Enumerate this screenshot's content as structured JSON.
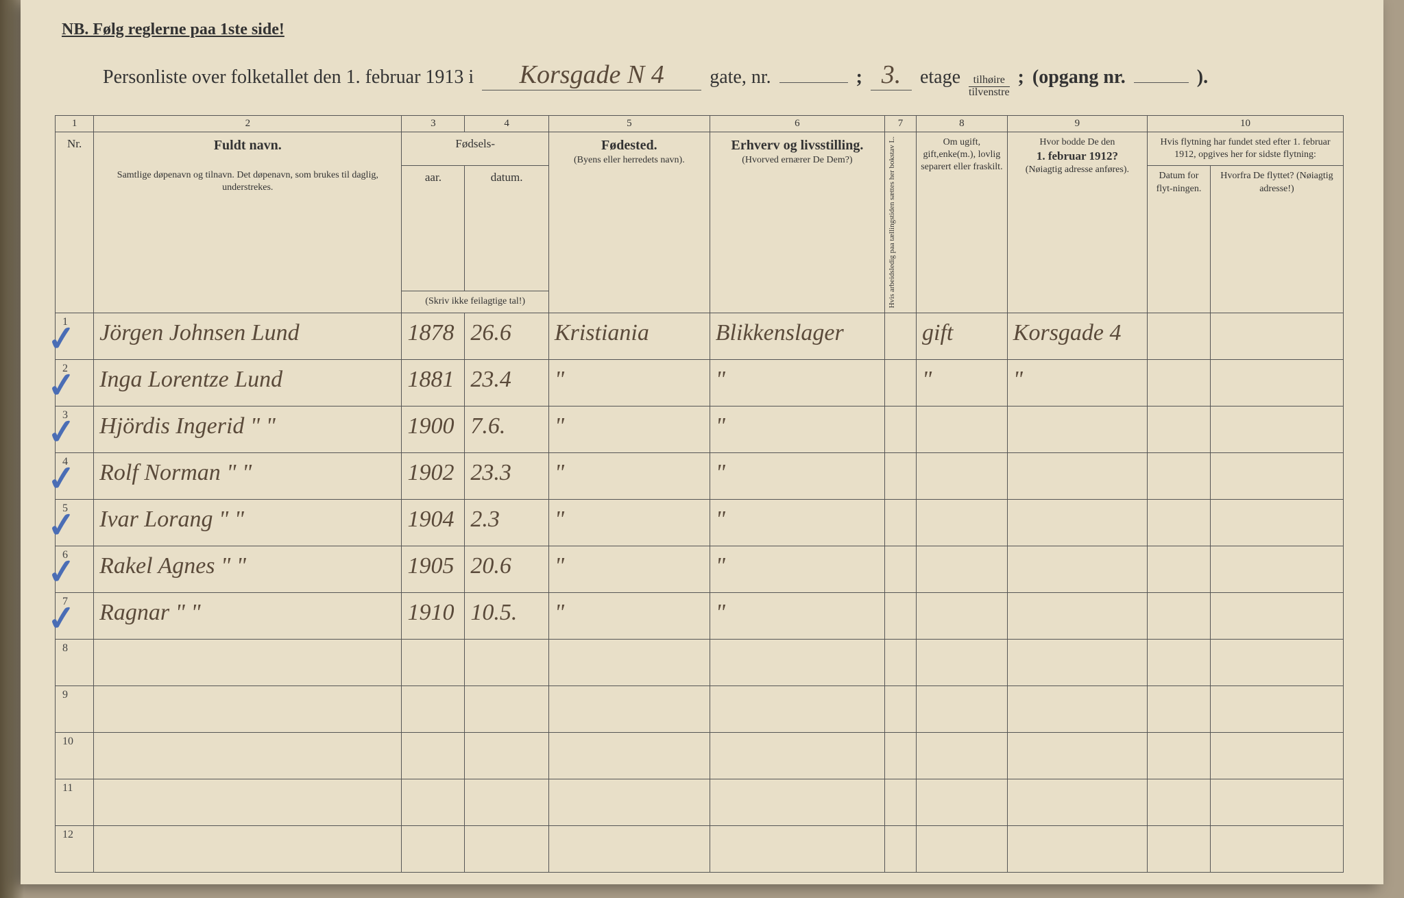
{
  "nb_text": "NB.  Følg reglerne paa 1ste side!",
  "header": {
    "prefix": "Personliste over folketallet den 1. februar 1913 i",
    "street_hw": "Korsgade N 4",
    "gate_label": "gate, nr.",
    "gate_val": "",
    "semicolon": ";",
    "etage_val": "3.",
    "etage_label": "etage",
    "frac_top": "tilhøire",
    "frac_bot": "tilvenstre",
    "semi2": ";",
    "opgang": "(opgang nr.",
    "opgang_val": "",
    "close": ")."
  },
  "colnums": [
    "1",
    "2",
    "3",
    "4",
    "5",
    "6",
    "7",
    "8",
    "9",
    "10"
  ],
  "headers": {
    "c2_bold": "Fuldt navn.",
    "c2_small": "Samtlige døpenavn og tilnavn. Det døpenavn, som brukes til daglig, understrekes.",
    "c34_top": "Fødsels-",
    "c3": "aar.",
    "c4": "datum.",
    "c34_bot": "(Skriv ikke feilagtige tal!)",
    "c5_bold": "Fødested.",
    "c5_small": "(Byens eller herredets navn).",
    "c6_bold": "Erhverv og livsstilling.",
    "c6_small": "(Hvorved ernærer De Dem?)",
    "c7": "Hvis arbeidsledig paa tællingstiden sættes her bokstav L.",
    "c8": "Om ugift, gift,enke(m.), lovlig separert eller fraskilt.",
    "c9_top": "Hvor bodde De den",
    "c9_bold": "1. februar 1912?",
    "c9_small": "(Nøiagtig adresse anføres).",
    "c10_top": "Hvis flytning har fundet sted efter 1. februar 1912, opgives her for sidste flytning:",
    "c10a": "Datum for flyt-ningen.",
    "c10b": "Hvorfra De flyttet? (Nøiagtig adresse!)"
  },
  "rows": [
    {
      "n": "1",
      "check": true,
      "name": "Jörgen Johnsen Lund",
      "year": "1878",
      "date": "26.6",
      "place": "Kristiania",
      "occ": "Blikkenslager",
      "status": "gift",
      "addr": "Korsgade 4"
    },
    {
      "n": "2",
      "check": true,
      "name": "Inga Lorentze Lund",
      "year": "1881",
      "date": "23.4",
      "place": "\"",
      "occ": "\"",
      "status": "\"",
      "addr": "\""
    },
    {
      "n": "3",
      "check": true,
      "name": "Hjördis Ingerid  \"  \"",
      "year": "1900",
      "date": "7.6.",
      "place": "\"",
      "occ": "\"",
      "status": "",
      "addr": ""
    },
    {
      "n": "4",
      "check": true,
      "name": "Rolf Norman  \"  \"",
      "year": "1902",
      "date": "23.3",
      "place": "\"",
      "occ": "\"",
      "status": "",
      "addr": ""
    },
    {
      "n": "5",
      "check": true,
      "name": "Ivar Lorang  \"  \"",
      "year": "1904",
      "date": "2.3",
      "place": "\"",
      "occ": "\"",
      "status": "",
      "addr": ""
    },
    {
      "n": "6",
      "check": true,
      "name": "Rakel Agnes  \"  \"",
      "year": "1905",
      "date": "20.6",
      "place": "\"",
      "occ": "\"",
      "status": "",
      "addr": ""
    },
    {
      "n": "7",
      "check": true,
      "name": "Ragnar  \"  \"",
      "year": "1910",
      "date": "10.5.",
      "place": "\"",
      "occ": "\"",
      "status": "",
      "addr": ""
    },
    {
      "n": "8",
      "check": false,
      "name": "",
      "year": "",
      "date": "",
      "place": "",
      "occ": "",
      "status": "",
      "addr": ""
    },
    {
      "n": "9",
      "check": false,
      "name": "",
      "year": "",
      "date": "",
      "place": "",
      "occ": "",
      "status": "",
      "addr": ""
    },
    {
      "n": "10",
      "check": false,
      "name": "",
      "year": "",
      "date": "",
      "place": "",
      "occ": "",
      "status": "",
      "addr": ""
    },
    {
      "n": "11",
      "check": false,
      "name": "",
      "year": "",
      "date": "",
      "place": "",
      "occ": "",
      "status": "",
      "addr": ""
    },
    {
      "n": "12",
      "check": false,
      "name": "",
      "year": "",
      "date": "",
      "place": "",
      "occ": "",
      "status": "",
      "addr": ""
    }
  ],
  "colors": {
    "paper": "#e8dfc8",
    "ink_print": "#333333",
    "ink_hw": "#5a4a3a",
    "check_blue": "#4a6db5",
    "border": "#555555",
    "backdrop": "#aa9d88"
  }
}
